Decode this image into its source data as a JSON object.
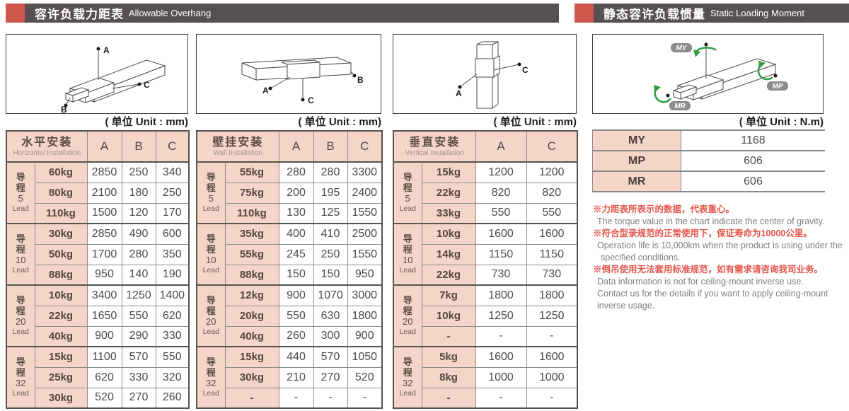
{
  "colors": {
    "accent_red": "#d0574e",
    "bar_gray": "#565051",
    "cell_pink": "#f5d5c8",
    "note_red": "#e4564c",
    "moment_green": "#2f9e41"
  },
  "section_headers": {
    "left": {
      "title_zh": "容许负载力距表",
      "title_en": "Allowable Overhang"
    },
    "right": {
      "title_zh": "静态容许负载惯量",
      "title_en": "Static Loading Moment"
    }
  },
  "units": {
    "mm": "( 单位 Unit : mm)",
    "nm": "( 单位 Unit : N.m)"
  },
  "lead_label": {
    "zh_chars": [
      "导",
      "程"
    ],
    "en": "Lead"
  },
  "diagram_labels": {
    "horizontal": [
      "A",
      "B",
      "C"
    ],
    "wall": [
      "A",
      "B",
      "C"
    ],
    "vertical": [
      "A",
      "C"
    ],
    "moment": [
      "MY",
      "MP",
      "MR"
    ]
  },
  "overhang_tables": [
    {
      "title_zh": "水平安装",
      "title_en": "Horizontal Installation",
      "columns": [
        "A",
        "B",
        "C"
      ],
      "groups": [
        {
          "lead": "5",
          "rows": [
            [
              "60kg",
              "2850",
              "250",
              "340"
            ],
            [
              "80kg",
              "2100",
              "180",
              "250"
            ],
            [
              "110kg",
              "1500",
              "120",
              "170"
            ]
          ]
        },
        {
          "lead": "10",
          "rows": [
            [
              "30kg",
              "2850",
              "490",
              "600"
            ],
            [
              "50kg",
              "1700",
              "280",
              "350"
            ],
            [
              "88kg",
              "950",
              "140",
              "190"
            ]
          ]
        },
        {
          "lead": "20",
          "rows": [
            [
              "10kg",
              "3400",
              "1250",
              "1400"
            ],
            [
              "22kg",
              "1650",
              "550",
              "620"
            ],
            [
              "40kg",
              "900",
              "290",
              "330"
            ]
          ]
        },
        {
          "lead": "32",
          "rows": [
            [
              "15kg",
              "1100",
              "570",
              "550"
            ],
            [
              "25kg",
              "620",
              "330",
              "320"
            ],
            [
              "30kg",
              "520",
              "270",
              "260"
            ]
          ]
        }
      ]
    },
    {
      "title_zh": "壁挂安装",
      "title_en": "Wall Installation",
      "columns": [
        "A",
        "B",
        "C"
      ],
      "groups": [
        {
          "lead": "5",
          "rows": [
            [
              "55kg",
              "280",
              "280",
              "3300"
            ],
            [
              "75kg",
              "200",
              "195",
              "2400"
            ],
            [
              "110kg",
              "130",
              "125",
              "1550"
            ]
          ]
        },
        {
          "lead": "10",
          "rows": [
            [
              "35kg",
              "400",
              "410",
              "2500"
            ],
            [
              "55kg",
              "245",
              "250",
              "1550"
            ],
            [
              "88kg",
              "150",
              "150",
              "950"
            ]
          ]
        },
        {
          "lead": "20",
          "rows": [
            [
              "12kg",
              "900",
              "1070",
              "3000"
            ],
            [
              "20kg",
              "550",
              "630",
              "1800"
            ],
            [
              "40kg",
              "260",
              "300",
              "900"
            ]
          ]
        },
        {
          "lead": "32",
          "rows": [
            [
              "15kg",
              "440",
              "570",
              "1050"
            ],
            [
              "30kg",
              "210",
              "270",
              "520"
            ],
            [
              "-",
              "-",
              "-",
              "-"
            ]
          ]
        }
      ]
    },
    {
      "title_zh": "垂直安装",
      "title_en": "Vertical Installation",
      "columns": [
        "A",
        "C"
      ],
      "groups": [
        {
          "lead": "5",
          "rows": [
            [
              "15kg",
              "1200",
              "1200"
            ],
            [
              "22kg",
              "820",
              "820"
            ],
            [
              "33kg",
              "550",
              "550"
            ]
          ]
        },
        {
          "lead": "10",
          "rows": [
            [
              "10kg",
              "1600",
              "1600"
            ],
            [
              "14kg",
              "1150",
              "1150"
            ],
            [
              "22kg",
              "730",
              "730"
            ]
          ]
        },
        {
          "lead": "20",
          "rows": [
            [
              "7kg",
              "1800",
              "1800"
            ],
            [
              "10kg",
              "1250",
              "1250"
            ],
            [
              "-",
              "-",
              "-"
            ]
          ]
        },
        {
          "lead": "32",
          "rows": [
            [
              "5kg",
              "1600",
              "1600"
            ],
            [
              "8kg",
              "1000",
              "1000"
            ],
            [
              "-",
              "-",
              "-"
            ]
          ]
        }
      ]
    }
  ],
  "moment_table": {
    "rows": [
      [
        "MY",
        "1168"
      ],
      [
        "MP",
        "606"
      ],
      [
        "MR",
        "606"
      ]
    ]
  },
  "notes": [
    {
      "zh": "※力距表所表示的数据，代表重心。",
      "en": [
        "The torque value in the chart indicate the center of gravity."
      ]
    },
    {
      "zh": "※符合型录规范的正常使用下，保证寿命为10000公里。",
      "en": [
        "Operation life is 10,000km when the product is using under the",
        "specified conditions."
      ]
    },
    {
      "zh": "※倒吊使用无法套用标准规范，如有需求请咨询我司业务。",
      "en": [
        "Data information is not for ceiling-mount inverse use.",
        "Contact us for the details if you want to apply ceiling-mount",
        "inverse usage."
      ]
    }
  ]
}
